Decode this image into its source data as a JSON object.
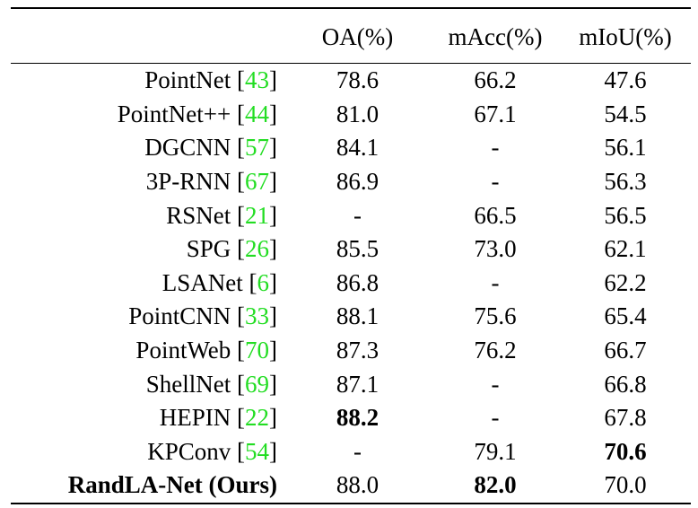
{
  "table": {
    "headers": [
      "",
      "OA(%)",
      "mAcc(%)",
      "mIoU(%)"
    ],
    "rows": [
      {
        "method": "PointNet",
        "ref": "43",
        "oa": "78.6",
        "macc": "66.2",
        "miou": "47.6"
      },
      {
        "method": "PointNet++",
        "ref": "44",
        "oa": "81.0",
        "macc": "67.1",
        "miou": "54.5"
      },
      {
        "method": "DGCNN",
        "ref": "57",
        "oa": "84.1",
        "macc": "-",
        "miou": "56.1"
      },
      {
        "method": "3P-RNN",
        "ref": "67",
        "oa": "86.9",
        "macc": "-",
        "miou": "56.3"
      },
      {
        "method": "RSNet",
        "ref": "21",
        "oa": "-",
        "macc": "66.5",
        "miou": "56.5"
      },
      {
        "method": "SPG",
        "ref": "26",
        "oa": "85.5",
        "macc": "73.0",
        "miou": "62.1"
      },
      {
        "method": "LSANet",
        "ref": "6",
        "oa": "86.8",
        "macc": "-",
        "miou": "62.2"
      },
      {
        "method": "PointCNN",
        "ref": "33",
        "oa": "88.1",
        "macc": "75.6",
        "miou": "65.4"
      },
      {
        "method": "PointWeb",
        "ref": "70",
        "oa": "87.3",
        "macc": "76.2",
        "miou": "66.7"
      },
      {
        "method": "ShellNet",
        "ref": "69",
        "oa": "87.1",
        "macc": "-",
        "miou": "66.8"
      },
      {
        "method": "HEPIN",
        "ref": "22",
        "oa": "88.2",
        "macc": "-",
        "miou": "67.8"
      },
      {
        "method": "KPConv",
        "ref": "54",
        "oa": "-",
        "macc": "79.1",
        "miou": "70.6"
      },
      {
        "method": "RandLA-Net (Ours)",
        "ref": "",
        "oa": "88.0",
        "macc": "82.0",
        "miou": "70.0"
      }
    ],
    "bold_cells": [
      {
        "row": 10,
        "col": "oa"
      },
      {
        "row": 11,
        "col": "miou"
      },
      {
        "row": 12,
        "col": "method"
      },
      {
        "row": 12,
        "col": "macc"
      }
    ]
  },
  "colors": {
    "citation": "#22dd22",
    "text": "#000000",
    "background": "#ffffff"
  }
}
